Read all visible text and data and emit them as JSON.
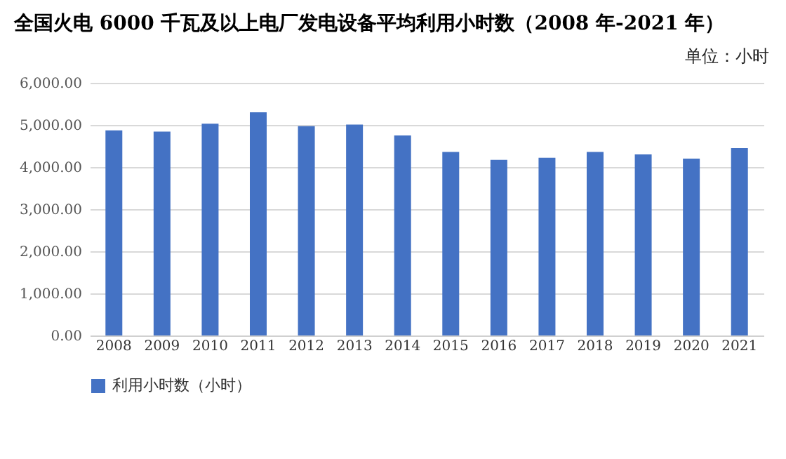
{
  "chart_data": {
    "type": "bar",
    "title": "全国火电 6000 千瓦及以上电厂发电设备平均利用小时数（2008 年-2021 年）",
    "annotations": [
      "单位：小时"
    ],
    "categories": [
      "2008",
      "2009",
      "2010",
      "2011",
      "2012",
      "2013",
      "2014",
      "2015",
      "2016",
      "2017",
      "2018",
      "2019",
      "2020",
      "2021"
    ],
    "series": [
      {
        "name": "利用小时数（小时）",
        "color": "#4472c4",
        "values": [
          4870,
          4840,
          5030,
          5300,
          4970,
          5010,
          4750,
          4360,
          4170,
          4220,
          4360,
          4300,
          4200,
          4450
        ]
      }
    ],
    "ylim": [
      0,
      6000
    ],
    "yticks": [
      {
        "value": 0,
        "label": "0.00"
      },
      {
        "value": 1000,
        "label": "1,000.00"
      },
      {
        "value": 2000,
        "label": "2,000.00"
      },
      {
        "value": 3000,
        "label": "3,000.00"
      },
      {
        "value": 4000,
        "label": "4,000.00"
      },
      {
        "value": 5000,
        "label": "5,000.00"
      },
      {
        "value": 6000,
        "label": "6,000.00"
      }
    ],
    "grid": "y",
    "legend": "bottom"
  }
}
